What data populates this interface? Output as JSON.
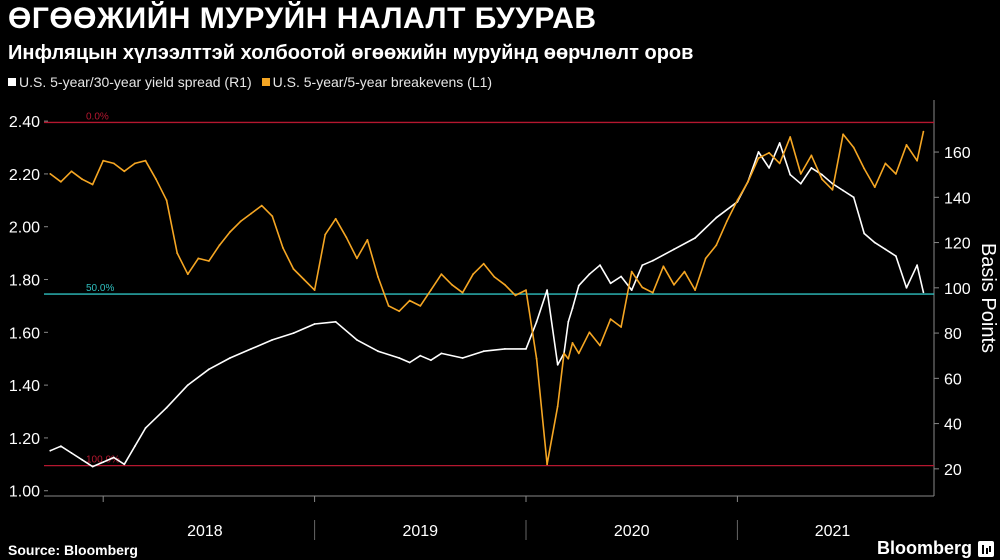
{
  "title": "ӨГӨӨЖИЙН МУРУЙН НАЛАЛТ БУУРАВ",
  "subtitle": "Инфляцын хүлээлттэй холбоотой өгөөжийн муруйнд өөрчлөлт оров",
  "source": "Source:  Bloomberg",
  "brand": "Bloomberg",
  "colors": {
    "spread": "#ffffff",
    "breakevens": "#f5a623",
    "red_line": "#b4172f",
    "cyan_line": "#2fbfbf",
    "background": "#000000"
  },
  "chart_data": {
    "type": "line",
    "x_categories": [
      "2018",
      "2019",
      "2020",
      "2021"
    ],
    "left_axis": {
      "ylim": [
        0.98,
        2.48
      ],
      "ticks": [
        "1.00",
        "1.20",
        "1.40",
        "1.60",
        "1.80",
        "2.00",
        "2.20",
        "2.40"
      ]
    },
    "right_axis": {
      "label": "Basis Points",
      "ylim": [
        8,
        183
      ],
      "ticks": [
        "20",
        "40",
        "60",
        "80",
        "100",
        "120",
        "140",
        "160"
      ]
    },
    "legend_position": "top-left",
    "reference_lines": [
      {
        "label": "0.0%",
        "value": 2.395,
        "axis": "left",
        "color": "#b4172f"
      },
      {
        "label": "50.0%",
        "value": 1.745,
        "axis": "left",
        "color": "#2fbfbf"
      },
      {
        "label": "100.0%",
        "value": 1.095,
        "axis": "left",
        "color": "#b4172f"
      }
    ],
    "series": [
      {
        "name": "U.S. 5-year/30-year yield spread (R1)",
        "axis": "right",
        "color": "#ffffff",
        "x": [
          2017.75,
          2017.8,
          2017.85,
          2017.9,
          2017.95,
          2018.0,
          2018.05,
          2018.1,
          2018.15,
          2018.2,
          2018.3,
          2018.4,
          2018.5,
          2018.6,
          2018.7,
          2018.8,
          2018.9,
          2019.0,
          2019.1,
          2019.2,
          2019.3,
          2019.4,
          2019.45,
          2019.5,
          2019.55,
          2019.6,
          2019.7,
          2019.8,
          2019.9,
          2020.0,
          2020.05,
          2020.1,
          2020.15,
          2020.18,
          2020.2,
          2020.22,
          2020.25,
          2020.3,
          2020.35,
          2020.4,
          2020.45,
          2020.5,
          2020.55,
          2020.6,
          2020.7,
          2020.8,
          2020.9,
          2021.0,
          2021.05,
          2021.1,
          2021.15,
          2021.2,
          2021.25,
          2021.3,
          2021.35,
          2021.4,
          2021.45,
          2021.5,
          2021.55,
          2021.6,
          2021.65,
          2021.7,
          2021.75,
          2021.8,
          2021.85,
          2021.88
        ],
        "values": [
          28,
          30,
          27,
          24,
          21,
          23,
          25,
          22,
          30,
          38,
          47,
          57,
          64,
          69,
          73,
          77,
          80,
          84,
          85,
          77,
          72,
          69,
          67,
          70,
          68,
          71,
          69,
          72,
          73,
          73,
          85,
          99,
          66,
          71,
          85,
          91,
          101,
          106,
          110,
          102,
          105,
          99,
          110,
          112,
          117,
          122,
          131,
          138,
          147,
          160,
          153,
          164,
          150,
          146,
          153,
          150,
          146,
          143,
          140,
          124,
          120,
          117,
          114,
          100,
          110,
          98
        ]
      },
      {
        "name": "U.S. 5-year/5-year breakevens (L1)",
        "axis": "left",
        "color": "#f5a623",
        "x": [
          2017.75,
          2017.8,
          2017.85,
          2017.9,
          2017.95,
          2018.0,
          2018.05,
          2018.1,
          2018.15,
          2018.2,
          2018.25,
          2018.3,
          2018.35,
          2018.4,
          2018.45,
          2018.5,
          2018.55,
          2018.6,
          2018.65,
          2018.7,
          2018.75,
          2018.8,
          2018.85,
          2018.9,
          2018.95,
          2019.0,
          2019.05,
          2019.1,
          2019.15,
          2019.2,
          2019.25,
          2019.3,
          2019.35,
          2019.4,
          2019.45,
          2019.5,
          2019.55,
          2019.6,
          2019.65,
          2019.7,
          2019.75,
          2019.8,
          2019.85,
          2019.9,
          2019.95,
          2020.0,
          2020.05,
          2020.1,
          2020.15,
          2020.18,
          2020.2,
          2020.22,
          2020.25,
          2020.3,
          2020.35,
          2020.4,
          2020.45,
          2020.5,
          2020.55,
          2020.6,
          2020.65,
          2020.7,
          2020.75,
          2020.8,
          2020.85,
          2020.9,
          2020.95,
          2021.0,
          2021.05,
          2021.1,
          2021.15,
          2021.2,
          2021.25,
          2021.3,
          2021.35,
          2021.4,
          2021.45,
          2021.5,
          2021.55,
          2021.6,
          2021.65,
          2021.7,
          2021.75,
          2021.8,
          2021.85,
          2021.88
        ],
        "values": [
          2.2,
          2.17,
          2.21,
          2.18,
          2.16,
          2.25,
          2.24,
          2.21,
          2.24,
          2.25,
          2.18,
          2.1,
          1.9,
          1.82,
          1.88,
          1.87,
          1.93,
          1.98,
          2.02,
          2.05,
          2.08,
          2.04,
          1.92,
          1.84,
          1.8,
          1.76,
          1.97,
          2.03,
          1.96,
          1.88,
          1.95,
          1.81,
          1.7,
          1.68,
          1.72,
          1.7,
          1.76,
          1.82,
          1.78,
          1.75,
          1.82,
          1.86,
          1.81,
          1.78,
          1.74,
          1.76,
          1.5,
          1.1,
          1.32,
          1.52,
          1.5,
          1.56,
          1.52,
          1.6,
          1.55,
          1.65,
          1.62,
          1.83,
          1.77,
          1.75,
          1.85,
          1.78,
          1.83,
          1.76,
          1.88,
          1.93,
          2.02,
          2.1,
          2.17,
          2.26,
          2.28,
          2.24,
          2.34,
          2.2,
          2.27,
          2.18,
          2.14,
          2.35,
          2.3,
          2.22,
          2.15,
          2.24,
          2.2,
          2.31,
          2.25,
          2.36
        ]
      }
    ]
  }
}
